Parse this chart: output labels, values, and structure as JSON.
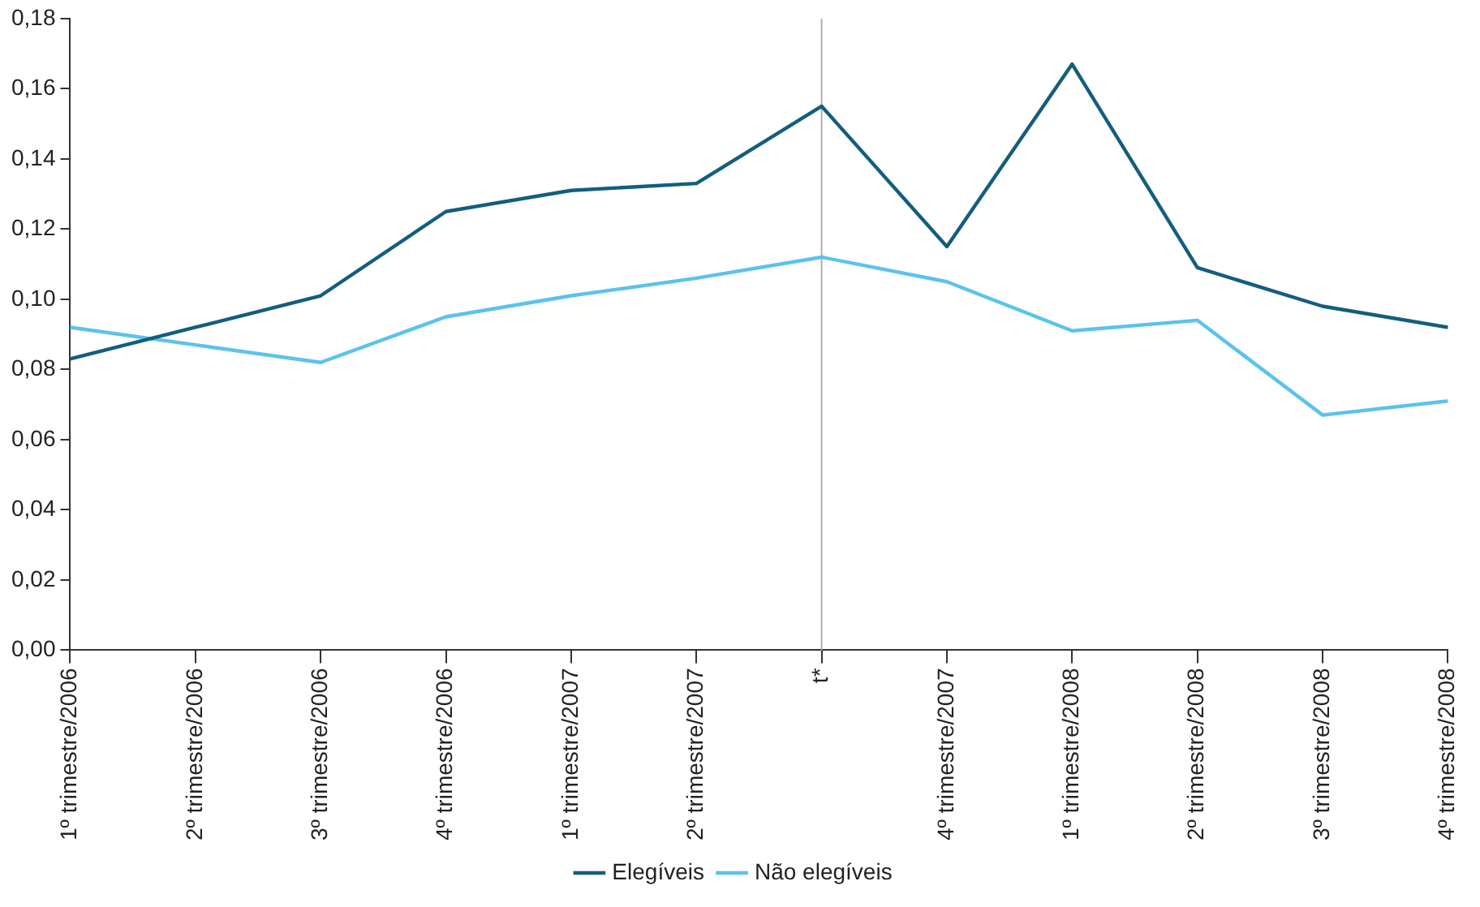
{
  "chart_data": {
    "type": "line",
    "categories": [
      "1º trimestre/2006",
      "2º trimestre/2006",
      "3º trimestre/2006",
      "4º trimestre/2006",
      "1º trimestre/2007",
      "2º trimestre/2007",
      "t*",
      "4º trimestre/2007",
      "1º trimestre/2008",
      "2º trimestre/2008",
      "3º trimestre/2008",
      "4º trimestre/2008"
    ],
    "series": [
      {
        "name": "Elegíveis",
        "color": "#135e7e",
        "values": [
          0.083,
          0.092,
          0.101,
          0.125,
          0.131,
          0.133,
          0.155,
          0.115,
          0.167,
          0.109,
          0.098,
          0.092
        ]
      },
      {
        "name": "Não elegíveis",
        "color": "#5bc3ec",
        "values": [
          0.092,
          0.087,
          0.082,
          0.095,
          0.101,
          0.106,
          0.112,
          0.105,
          0.091,
          0.094,
          0.067,
          0.071
        ]
      }
    ],
    "ylim": [
      0,
      0.18
    ],
    "yticks": [
      {
        "value": 0,
        "label": "0,00"
      },
      {
        "value": 0.02,
        "label": "0,02"
      },
      {
        "value": 0.04,
        "label": "0,04"
      },
      {
        "value": 0.06,
        "label": "0,06"
      },
      {
        "value": 0.08,
        "label": "0,08"
      },
      {
        "value": 0.1,
        "label": "0,10"
      },
      {
        "value": 0.12,
        "label": "0,12"
      },
      {
        "value": 0.14,
        "label": "0,14"
      },
      {
        "value": 0.16,
        "label": "0,16"
      },
      {
        "value": 0.18,
        "label": "0,18"
      }
    ],
    "ref_lines": [
      {
        "axis": "x",
        "value": "t*",
        "color": "#b0b0b0"
      }
    ],
    "grid": false,
    "legend": "bottom",
    "marker": "none",
    "line_style": "solid"
  }
}
